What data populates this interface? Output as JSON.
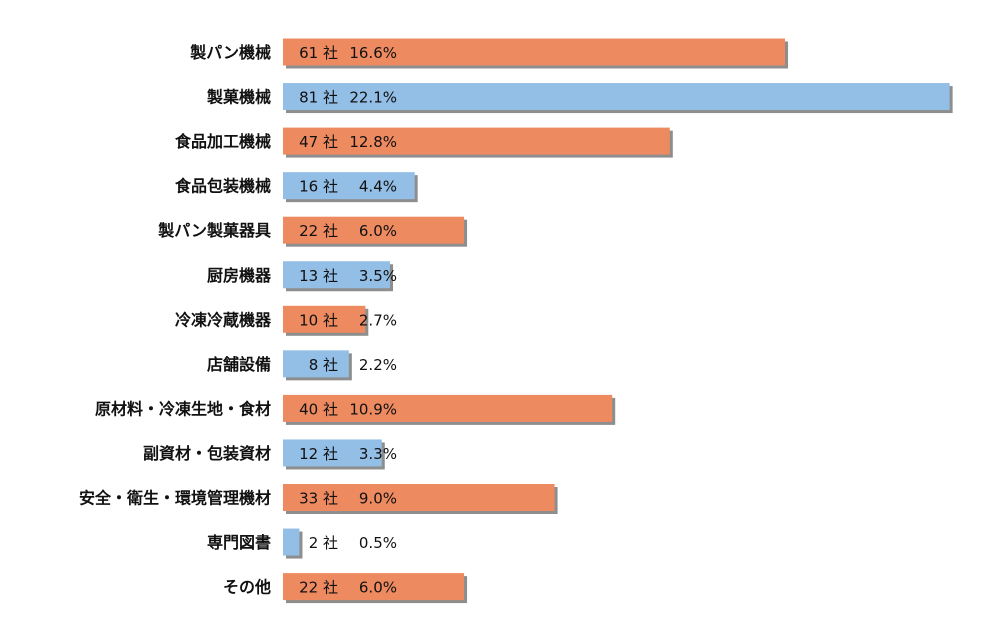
{
  "chart_data": {
    "type": "bar",
    "orientation": "horizontal",
    "categories": [
      "製パン機械",
      "製菓機械",
      "食品加工機械",
      "食品包装機械",
      "製パン製菓器具",
      "厨房機器",
      "冷凍冷蔵機器",
      "店舗設備",
      "原材料・冷凍生地・食材",
      "副資材・包装資材",
      "安全・衛生・環境管理機材",
      "専門図書",
      "その他"
    ],
    "values": [
      61,
      81,
      47,
      16,
      22,
      13,
      10,
      8,
      40,
      12,
      33,
      2,
      22
    ],
    "data_labels": [
      [
        "61 社",
        "16.6%"
      ],
      [
        "81 社",
        "22.1%"
      ],
      [
        "47 社",
        "12.8%"
      ],
      [
        "16 社",
        "4.4%"
      ],
      [
        "22 社",
        "6.0%"
      ],
      [
        "13 社",
        "3.5%"
      ],
      [
        "10 社",
        "2.7%"
      ],
      [
        "8 社",
        "2.2%"
      ],
      [
        "40 社",
        "10.9%"
      ],
      [
        "12 社",
        "3.3%"
      ],
      [
        "33 社",
        "9.0%"
      ],
      [
        "2 社",
        "0.5%"
      ],
      [
        "22 社",
        "6.0%"
      ]
    ],
    "colors": {
      "orange": "#EE8A60",
      "blue": "#93BEE6",
      "shadow": "#8E8E8E"
    },
    "bar_color_pattern": [
      "orange",
      "blue"
    ],
    "grid": false,
    "legend": "none"
  }
}
